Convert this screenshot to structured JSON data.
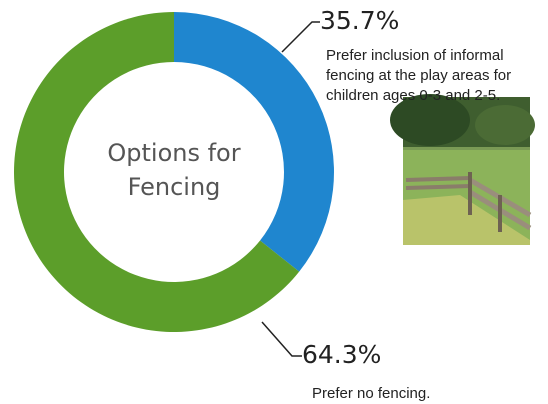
{
  "chart_data": {
    "type": "pie",
    "title": "Options for Fencing",
    "categories": [
      "Prefer inclusion of informal fencing at the play areas for children ages 0-3 and 2-5.",
      "Prefer no fencing."
    ],
    "values": [
      35.7,
      64.3
    ],
    "value_labels": [
      "35.7%",
      "64.3%"
    ],
    "colors": [
      "#1f86cf",
      "#5c9e2a"
    ]
  }
}
